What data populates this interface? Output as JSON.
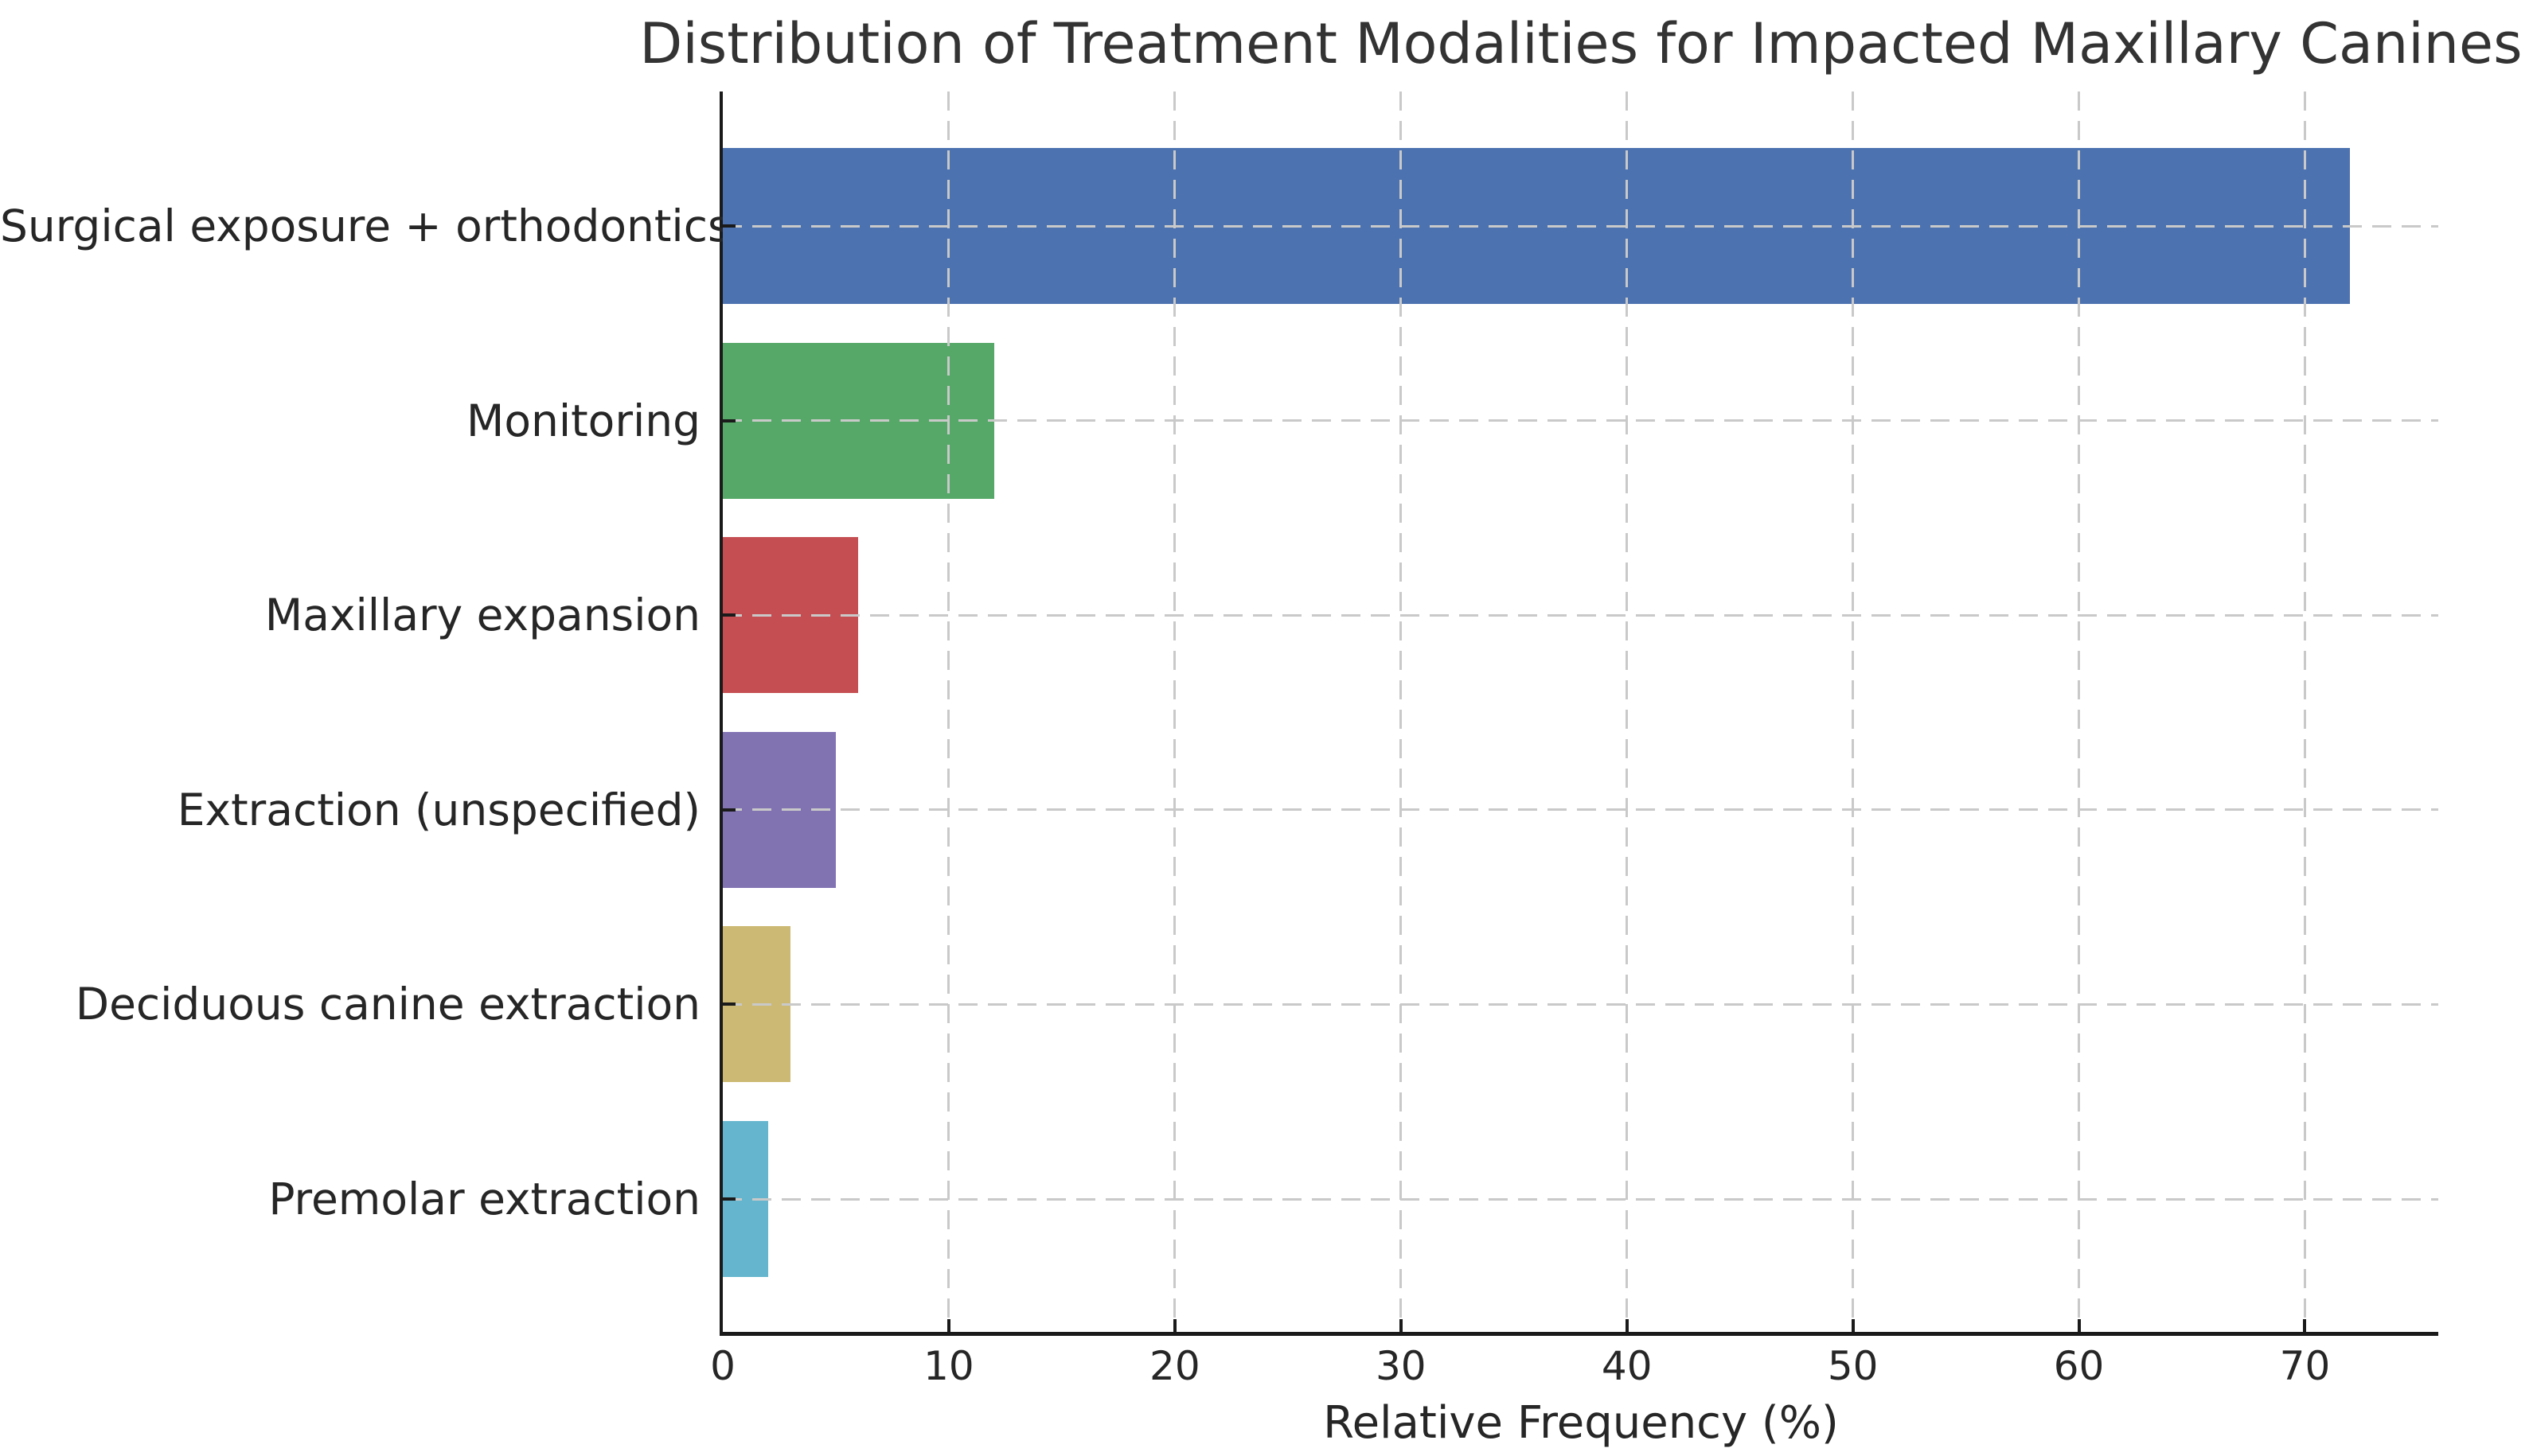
{
  "figure": {
    "title": "Distribution of Treatment Modalities for Impacted Maxillary Canines",
    "background_color": "#ffffff",
    "text_color": "#262626",
    "title_color": "#333333",
    "spine_color": "#1a1a1a",
    "grid_color": "#c9c9c9"
  },
  "chart_data": {
    "type": "bar",
    "orientation": "horizontal",
    "title": "Distribution of Treatment Modalities for Impacted Maxillary Canines",
    "xlabel": "Relative Frequency (%)",
    "ylabel": "",
    "categories": [
      "Surgical exposure + orthodontics",
      "Monitoring",
      "Maxillary expansion",
      "Extraction (unspecified)",
      "Deciduous canine extraction",
      "Premolar extraction"
    ],
    "values": [
      72,
      12,
      6,
      5,
      3,
      2
    ],
    "bar_colors": [
      "#4C72B0",
      "#55A868",
      "#C44E52",
      "#8172B2",
      "#CCB974",
      "#64B5CD"
    ],
    "x_ticks": [
      0,
      10,
      20,
      30,
      40,
      50,
      60,
      70
    ],
    "xlim": [
      0,
      75.9
    ],
    "grid": "dashed, vertical at x ticks and horizontal at category centers, drawn over bars",
    "legend": "none"
  }
}
